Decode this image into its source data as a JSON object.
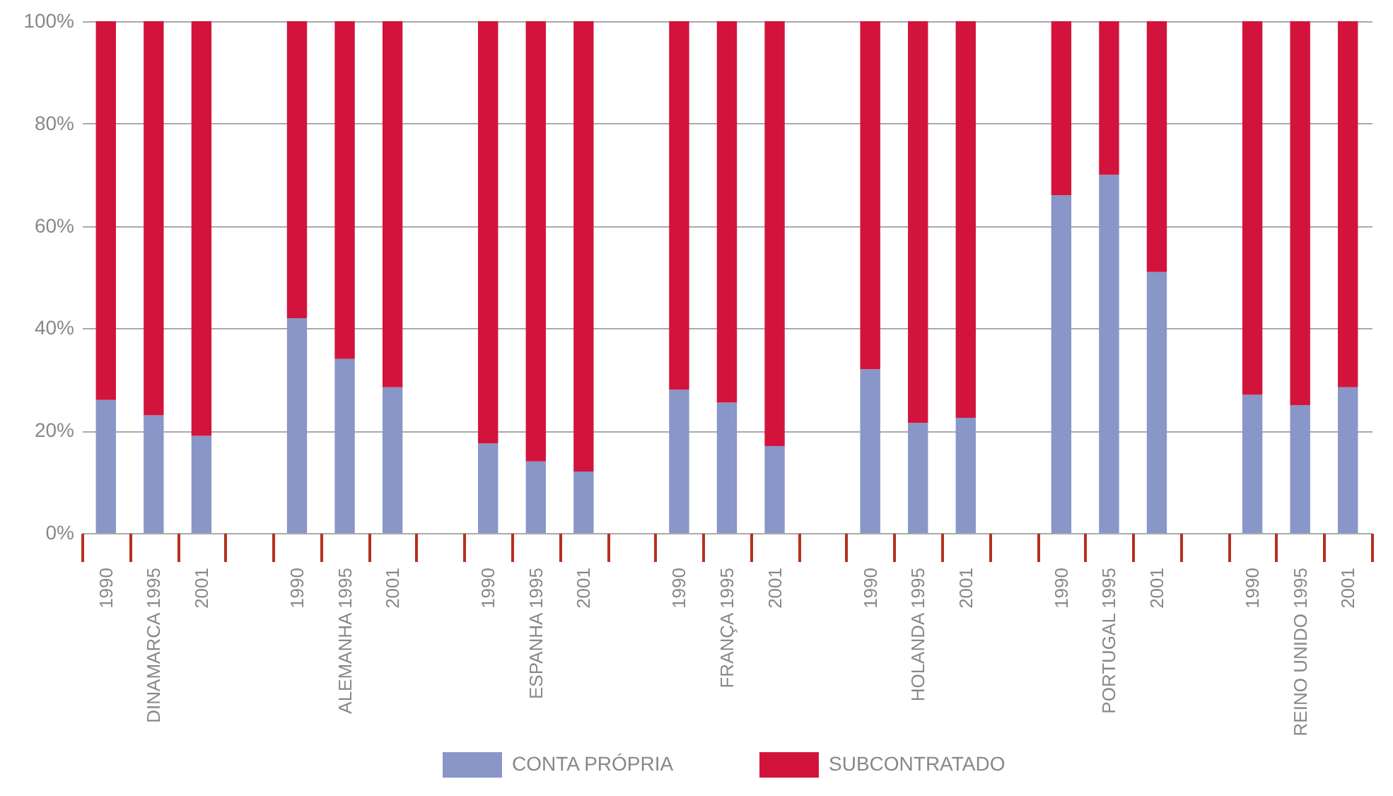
{
  "chart_data": {
    "type": "bar",
    "stacked": true,
    "categories": [
      "1990",
      "DINAMARCA 1995",
      "2001",
      null,
      "1990",
      "ALEMANHA 1995",
      "2001",
      null,
      "1990",
      "ESPANHA 1995",
      "2001",
      null,
      "1990",
      "FRANÇA 1995",
      "2001",
      null,
      "1990",
      "HOLANDA 1995",
      "2001",
      null,
      "1990",
      "PORTUGAL 1995",
      "2001",
      null,
      "1990",
      "REINO UNIDO 1995",
      "2001"
    ],
    "series": [
      {
        "name": "CONTA PRÓPRIA",
        "color": "#8896c8",
        "values": [
          26,
          23,
          19,
          null,
          42,
          34,
          28.5,
          null,
          17.5,
          14,
          12,
          null,
          28,
          25.5,
          17,
          null,
          32,
          21.5,
          22.5,
          null,
          66,
          70,
          51,
          null,
          27,
          25,
          28.5
        ]
      },
      {
        "name": "SUBCONTRATADO",
        "color": "#d2143c",
        "values": [
          74,
          77,
          81,
          null,
          58,
          66,
          71.5,
          null,
          82.5,
          86,
          88,
          null,
          72,
          74.5,
          83,
          null,
          68,
          78.5,
          77.5,
          null,
          34,
          30,
          49,
          null,
          73,
          75,
          71.5
        ]
      }
    ],
    "ylim": [
      0,
      100
    ],
    "yticks": [
      {
        "value": 0,
        "label": "0%"
      },
      {
        "value": 20,
        "label": "20%"
      },
      {
        "value": 40,
        "label": "40%"
      },
      {
        "value": 60,
        "label": "60%"
      },
      {
        "value": 80,
        "label": "80%"
      },
      {
        "value": 100,
        "label": "100%"
      }
    ],
    "grid": "y",
    "legend": "bottom"
  }
}
